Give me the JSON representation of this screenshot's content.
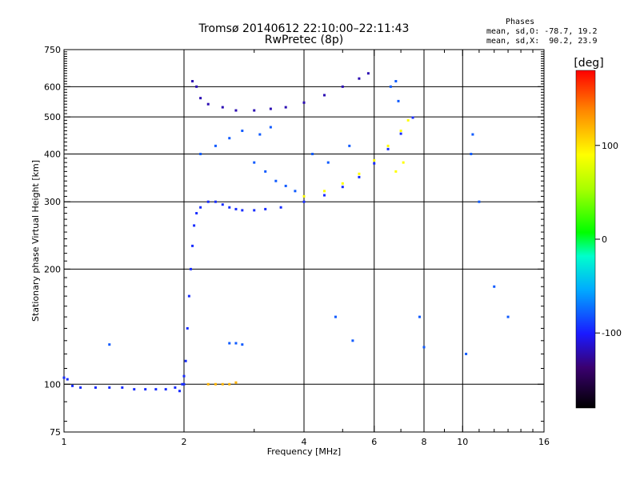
{
  "header": {
    "title": "Tromsø 20140612 22:10:00–22:11:43",
    "subtitle": "RwPretec (8p)"
  },
  "stats": {
    "heading": "Phases",
    "line_o": "mean, sd,O: -78.7, 19.2",
    "line_x": "mean, sd,X:  90.2, 23.9"
  },
  "colorbar": {
    "unit_label": "[deg]",
    "min": -180,
    "max": 180,
    "ticks": [
      100,
      0,
      -100
    ],
    "tick_labels": [
      "100",
      "0",
      "-100"
    ]
  },
  "chart_data": {
    "type": "scatter",
    "xlabel": "Frequency [MHz]",
    "ylabel": "Stationary phase Virtual Height [km]",
    "xscale": "log",
    "yscale": "log",
    "xlim": [
      1,
      16
    ],
    "ylim": [
      75,
      750
    ],
    "xticks": [
      1,
      2,
      4,
      6,
      8,
      10,
      16
    ],
    "xtick_labels": [
      "1",
      "2",
      "4",
      "6",
      "8",
      "10",
      "16"
    ],
    "yticks": [
      75,
      100,
      200,
      300,
      400,
      500,
      600,
      750
    ],
    "ytick_labels": [
      "75",
      "100",
      "200",
      "300",
      "400",
      "500",
      "600",
      "750"
    ],
    "xgrid": [
      2,
      4,
      6,
      8,
      10
    ],
    "ygrid": [
      100,
      200,
      300,
      400,
      500,
      600
    ],
    "grid": true,
    "series": [
      {
        "trace": "o",
        "phase": -95,
        "points": [
          [
            1.0,
            104
          ],
          [
            1.02,
            103
          ],
          [
            1.05,
            99
          ],
          [
            1.1,
            98
          ],
          [
            1.2,
            98
          ],
          [
            1.3,
            98
          ],
          [
            1.4,
            98
          ],
          [
            1.5,
            97
          ],
          [
            1.6,
            97
          ],
          [
            1.7,
            97
          ],
          [
            1.8,
            97
          ],
          [
            1.9,
            98
          ],
          [
            2.0,
            100
          ],
          [
            1.95,
            96
          ],
          [
            1.98,
            100
          ],
          [
            2.0,
            105
          ],
          [
            2.02,
            115
          ],
          [
            2.04,
            140
          ],
          [
            2.06,
            170
          ],
          [
            2.08,
            200
          ],
          [
            2.1,
            230
          ],
          [
            2.12,
            260
          ],
          [
            2.15,
            280
          ],
          [
            2.2,
            290
          ],
          [
            2.3,
            300
          ],
          [
            2.4,
            300
          ],
          [
            2.5,
            295
          ],
          [
            2.6,
            290
          ],
          [
            2.7,
            287
          ],
          [
            2.8,
            285
          ],
          [
            3.0,
            285
          ],
          [
            3.2,
            287
          ],
          [
            3.5,
            290
          ],
          [
            4.0,
            300
          ],
          [
            4.5,
            312
          ],
          [
            5.0,
            328
          ],
          [
            5.5,
            348
          ],
          [
            6.0,
            378
          ],
          [
            6.5,
            412
          ],
          [
            7.0,
            452
          ],
          [
            7.5,
            498
          ]
        ]
      },
      {
        "trace": "o-wedge",
        "phase": -120,
        "points": [
          [
            2.1,
            620
          ],
          [
            2.15,
            600
          ],
          [
            2.2,
            560
          ],
          [
            2.3,
            540
          ],
          [
            2.5,
            530
          ],
          [
            2.7,
            520
          ],
          [
            3.0,
            520
          ],
          [
            3.3,
            525
          ],
          [
            3.6,
            530
          ],
          [
            4.0,
            545
          ],
          [
            4.5,
            570
          ],
          [
            5.0,
            600
          ],
          [
            5.5,
            630
          ],
          [
            5.8,
            650
          ]
        ]
      },
      {
        "trace": "x",
        "phase": 90,
        "points": [
          [
            4.0,
            310
          ],
          [
            4.5,
            320
          ],
          [
            5.0,
            335
          ],
          [
            5.5,
            355
          ],
          [
            6.0,
            385
          ],
          [
            6.5,
            420
          ],
          [
            7.0,
            460
          ],
          [
            7.3,
            490
          ],
          [
            6.8,
            360
          ],
          [
            7.1,
            380
          ]
        ]
      },
      {
        "trace": "x-low",
        "phase": 120,
        "points": [
          [
            2.3,
            100
          ],
          [
            2.4,
            100
          ],
          [
            2.5,
            100
          ],
          [
            2.6,
            100
          ],
          [
            2.7,
            101
          ]
        ]
      },
      {
        "trace": "scatter",
        "phase": -80,
        "points": [
          [
            3.0,
            380
          ],
          [
            3.2,
            360
          ],
          [
            3.4,
            340
          ],
          [
            3.6,
            330
          ],
          [
            3.8,
            320
          ],
          [
            4.2,
            400
          ],
          [
            4.6,
            380
          ],
          [
            5.2,
            420
          ],
          [
            3.1,
            450
          ],
          [
            3.3,
            470
          ],
          [
            2.2,
            400
          ],
          [
            2.4,
            420
          ],
          [
            2.6,
            440
          ],
          [
            2.8,
            460
          ],
          [
            6.6,
            600
          ],
          [
            6.8,
            620
          ],
          [
            6.9,
            550
          ],
          [
            10.2,
            120
          ],
          [
            10.5,
            400
          ],
          [
            10.6,
            450
          ],
          [
            11.0,
            300
          ],
          [
            12.0,
            180
          ],
          [
            13.0,
            150
          ],
          [
            7.8,
            150
          ],
          [
            8.0,
            125
          ],
          [
            5.3,
            130
          ],
          [
            4.8,
            150
          ],
          [
            2.6,
            128
          ],
          [
            2.7,
            128
          ],
          [
            2.8,
            127
          ],
          [
            1.3,
            127
          ]
        ]
      }
    ]
  }
}
